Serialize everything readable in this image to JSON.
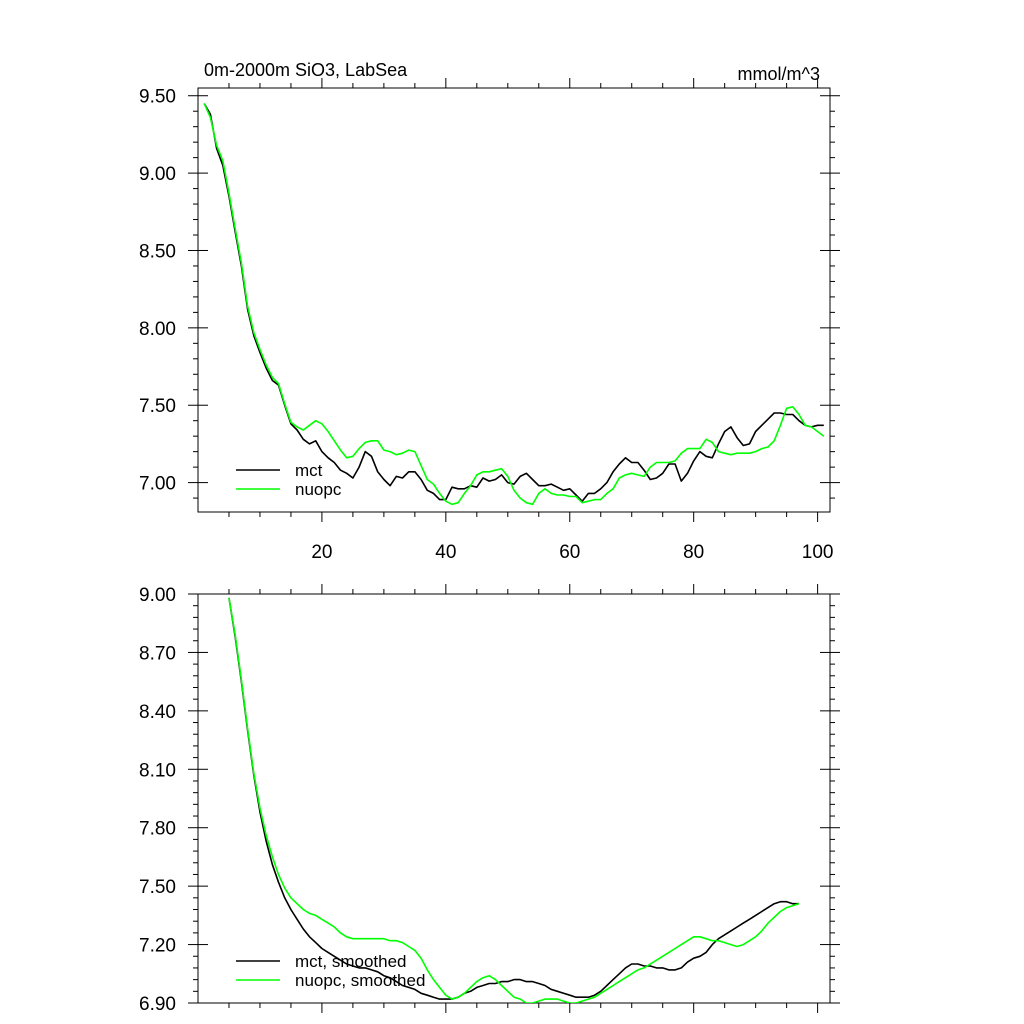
{
  "chart_data": [
    {
      "type": "line",
      "title": "0m-2000m SiO3, LabSea",
      "units": "mmol/m^3",
      "xlabel": "",
      "ylabel": "",
      "xlim": [
        0,
        102
      ],
      "ylim": [
        6.81,
        9.55
      ],
      "xticks": [
        20,
        40,
        60,
        80,
        100
      ],
      "xtick_labels": [
        "20",
        "40",
        "60",
        "80",
        "100"
      ],
      "yticks": [
        7.0,
        7.5,
        8.0,
        8.5,
        9.0,
        9.5
      ],
      "ytick_labels": [
        "7.00",
        "7.50",
        "8.00",
        "8.50",
        "9.00",
        "9.50"
      ],
      "grid": false,
      "legend_position": "bottom-left",
      "series": [
        {
          "name": "mct",
          "color": "#000000",
          "x": [
            1,
            2,
            3,
            4,
            5,
            6,
            7,
            8,
            9,
            10,
            11,
            12,
            13,
            14,
            15,
            16,
            17,
            18,
            19,
            20,
            21,
            22,
            23,
            24,
            25,
            26,
            27,
            28,
            29,
            30,
            31,
            32,
            33,
            34,
            35,
            36,
            37,
            38,
            39,
            40,
            41,
            42,
            43,
            44,
            45,
            46,
            47,
            48,
            49,
            50,
            51,
            52,
            53,
            54,
            55,
            56,
            57,
            58,
            59,
            60,
            61,
            62,
            63,
            64,
            65,
            66,
            67,
            68,
            69,
            70,
            71,
            72,
            73,
            74,
            75,
            76,
            77,
            78,
            79,
            80,
            81,
            82,
            83,
            84,
            85,
            86,
            87,
            88,
            89,
            90,
            91,
            92,
            93,
            94,
            95,
            96,
            97,
            98,
            99,
            100,
            101
          ],
          "values": [
            9.45,
            9.38,
            9.16,
            9.05,
            8.85,
            8.62,
            8.4,
            8.12,
            7.95,
            7.84,
            7.74,
            7.66,
            7.63,
            7.5,
            7.38,
            7.34,
            7.28,
            7.25,
            7.27,
            7.2,
            7.16,
            7.13,
            7.08,
            7.06,
            7.03,
            7.1,
            7.2,
            7.17,
            7.07,
            7.02,
            6.98,
            7.04,
            7.03,
            7.07,
            7.07,
            7.02,
            6.95,
            6.93,
            6.89,
            6.89,
            6.97,
            6.96,
            6.96,
            6.98,
            6.97,
            7.03,
            7.01,
            7.02,
            7.05,
            7.0,
            6.99,
            7.04,
            7.06,
            7.02,
            6.98,
            6.98,
            6.99,
            6.97,
            6.95,
            6.96,
            6.92,
            6.88,
            6.93,
            6.93,
            6.96,
            7.0,
            7.07,
            7.12,
            7.16,
            7.13,
            7.13,
            7.08,
            7.02,
            7.03,
            7.06,
            7.12,
            7.12,
            7.01,
            7.06,
            7.14,
            7.2,
            7.17,
            7.16,
            7.25,
            7.33,
            7.36,
            7.29,
            7.24,
            7.25,
            7.33,
            7.37,
            7.41,
            7.45,
            7.45,
            7.44,
            7.44,
            7.4,
            7.37,
            7.36,
            7.37,
            7.37
          ]
        },
        {
          "name": "nuopc",
          "color": "#00ff00",
          "x": [
            1,
            2,
            3,
            4,
            5,
            6,
            7,
            8,
            9,
            10,
            11,
            12,
            13,
            14,
            15,
            16,
            17,
            18,
            19,
            20,
            21,
            22,
            23,
            24,
            25,
            26,
            27,
            28,
            29,
            30,
            31,
            32,
            33,
            34,
            35,
            36,
            37,
            38,
            39,
            40,
            41,
            42,
            43,
            44,
            45,
            46,
            47,
            48,
            49,
            50,
            51,
            52,
            53,
            54,
            55,
            56,
            57,
            58,
            59,
            60,
            61,
            62,
            63,
            64,
            65,
            66,
            67,
            68,
            69,
            70,
            71,
            72,
            73,
            74,
            75,
            76,
            77,
            78,
            79,
            80,
            81,
            82,
            83,
            84,
            85,
            86,
            87,
            88,
            89,
            90,
            91,
            92,
            93,
            94,
            95,
            96,
            97,
            98,
            99,
            100,
            101
          ],
          "values": [
            9.45,
            9.36,
            9.18,
            9.08,
            8.87,
            8.64,
            8.42,
            8.14,
            7.97,
            7.86,
            7.76,
            7.68,
            7.64,
            7.51,
            7.39,
            7.36,
            7.34,
            7.37,
            7.4,
            7.38,
            7.33,
            7.27,
            7.21,
            7.16,
            7.17,
            7.22,
            7.26,
            7.27,
            7.27,
            7.21,
            7.2,
            7.18,
            7.19,
            7.21,
            7.2,
            7.11,
            7.02,
            6.99,
            6.93,
            6.88,
            6.86,
            6.87,
            6.93,
            6.98,
            7.05,
            7.07,
            7.07,
            7.08,
            7.09,
            7.04,
            6.95,
            6.9,
            6.87,
            6.86,
            6.93,
            6.96,
            6.93,
            6.92,
            6.92,
            6.91,
            6.91,
            6.87,
            6.88,
            6.89,
            6.89,
            6.93,
            6.96,
            7.03,
            7.05,
            7.06,
            7.05,
            7.04,
            7.1,
            7.13,
            7.13,
            7.13,
            7.14,
            7.19,
            7.22,
            7.22,
            7.22,
            7.28,
            7.26,
            7.2,
            7.19,
            7.18,
            7.19,
            7.19,
            7.19,
            7.2,
            7.22,
            7.23,
            7.27,
            7.37,
            7.48,
            7.49,
            7.44,
            7.37,
            7.36,
            7.33,
            7.3
          ]
        }
      ]
    },
    {
      "type": "line",
      "title": "",
      "xlabel": "",
      "ylabel": "",
      "xlim": [
        0,
        102
      ],
      "ylim": [
        6.9,
        9.0
      ],
      "xticks": [
        20,
        40,
        60,
        80,
        100
      ],
      "xtick_labels": [],
      "yticks": [
        6.9,
        7.2,
        7.5,
        7.8,
        8.1,
        8.4,
        8.7,
        9.0
      ],
      "ytick_labels": [
        "6.90",
        "7.20",
        "7.50",
        "7.80",
        "8.10",
        "8.40",
        "8.70",
        "9.00"
      ],
      "grid": false,
      "legend_position": "bottom-left",
      "series": [
        {
          "name": "mct, smoothed",
          "color": "#000000",
          "x": [
            5,
            6,
            7,
            8,
            9,
            10,
            11,
            12,
            13,
            14,
            15,
            16,
            17,
            18,
            19,
            20,
            21,
            22,
            23,
            24,
            25,
            26,
            27,
            28,
            29,
            30,
            31,
            32,
            33,
            34,
            35,
            36,
            37,
            38,
            39,
            40,
            41,
            42,
            43,
            44,
            45,
            46,
            47,
            48,
            49,
            50,
            51,
            52,
            53,
            54,
            55,
            56,
            57,
            58,
            59,
            60,
            61,
            62,
            63,
            64,
            65,
            66,
            67,
            68,
            69,
            70,
            71,
            72,
            73,
            74,
            75,
            76,
            77,
            78,
            79,
            80,
            81,
            82,
            83,
            84,
            85,
            86,
            87,
            88,
            89,
            90,
            91,
            92,
            93,
            94,
            95,
            96,
            97
          ],
          "values": [
            8.98,
            8.78,
            8.55,
            8.3,
            8.07,
            7.88,
            7.73,
            7.61,
            7.52,
            7.44,
            7.38,
            7.33,
            7.28,
            7.24,
            7.21,
            7.18,
            7.16,
            7.14,
            7.12,
            7.1,
            7.09,
            7.08,
            7.08,
            7.07,
            7.06,
            7.04,
            7.03,
            7.01,
            6.99,
            6.98,
            6.97,
            6.95,
            6.94,
            6.93,
            6.92,
            6.92,
            6.92,
            6.93,
            6.95,
            6.96,
            6.98,
            6.99,
            7.0,
            7.0,
            7.01,
            7.01,
            7.02,
            7.02,
            7.01,
            7.01,
            7.0,
            6.99,
            6.97,
            6.96,
            6.95,
            6.94,
            6.93,
            6.93,
            6.93,
            6.94,
            6.96,
            6.99,
            7.02,
            7.05,
            7.08,
            7.1,
            7.1,
            7.09,
            7.09,
            7.08,
            7.08,
            7.07,
            7.07,
            7.08,
            7.11,
            7.13,
            7.14,
            7.16,
            7.2,
            7.23,
            7.25,
            7.27,
            7.29,
            7.31,
            7.33,
            7.35,
            7.37,
            7.39,
            7.41,
            7.42,
            7.42,
            7.41,
            7.41
          ]
        },
        {
          "name": "nuopc, smoothed",
          "color": "#00ff00",
          "x": [
            5,
            6,
            7,
            8,
            9,
            10,
            11,
            12,
            13,
            14,
            15,
            16,
            17,
            18,
            19,
            20,
            21,
            22,
            23,
            24,
            25,
            26,
            27,
            28,
            29,
            30,
            31,
            32,
            33,
            34,
            35,
            36,
            37,
            38,
            39,
            40,
            41,
            42,
            43,
            44,
            45,
            46,
            47,
            48,
            49,
            50,
            51,
            52,
            53,
            54,
            55,
            56,
            57,
            58,
            59,
            60,
            61,
            62,
            63,
            64,
            65,
            66,
            67,
            68,
            69,
            70,
            71,
            72,
            73,
            74,
            75,
            76,
            77,
            78,
            79,
            80,
            81,
            82,
            83,
            84,
            85,
            86,
            87,
            88,
            89,
            90,
            91,
            92,
            93,
            94,
            95,
            96,
            97
          ],
          "values": [
            8.98,
            8.79,
            8.56,
            8.31,
            8.08,
            7.9,
            7.76,
            7.65,
            7.56,
            7.49,
            7.44,
            7.41,
            7.38,
            7.36,
            7.35,
            7.33,
            7.31,
            7.29,
            7.26,
            7.24,
            7.23,
            7.23,
            7.23,
            7.23,
            7.23,
            7.23,
            7.22,
            7.22,
            7.21,
            7.19,
            7.17,
            7.13,
            7.07,
            7.02,
            6.98,
            6.94,
            6.92,
            6.93,
            6.95,
            6.98,
            7.01,
            7.03,
            7.04,
            7.02,
            6.99,
            6.96,
            6.93,
            6.92,
            6.9,
            6.9,
            6.91,
            6.92,
            6.92,
            6.92,
            6.91,
            6.9,
            6.9,
            6.91,
            6.92,
            6.93,
            6.95,
            6.97,
            6.99,
            7.01,
            7.03,
            7.05,
            7.07,
            7.08,
            7.1,
            7.12,
            7.14,
            7.16,
            7.18,
            7.2,
            7.22,
            7.24,
            7.24,
            7.23,
            7.22,
            7.22,
            7.21,
            7.2,
            7.19,
            7.2,
            7.22,
            7.24,
            7.27,
            7.31,
            7.34,
            7.37,
            7.39,
            7.4,
            7.41
          ]
        }
      ]
    }
  ]
}
